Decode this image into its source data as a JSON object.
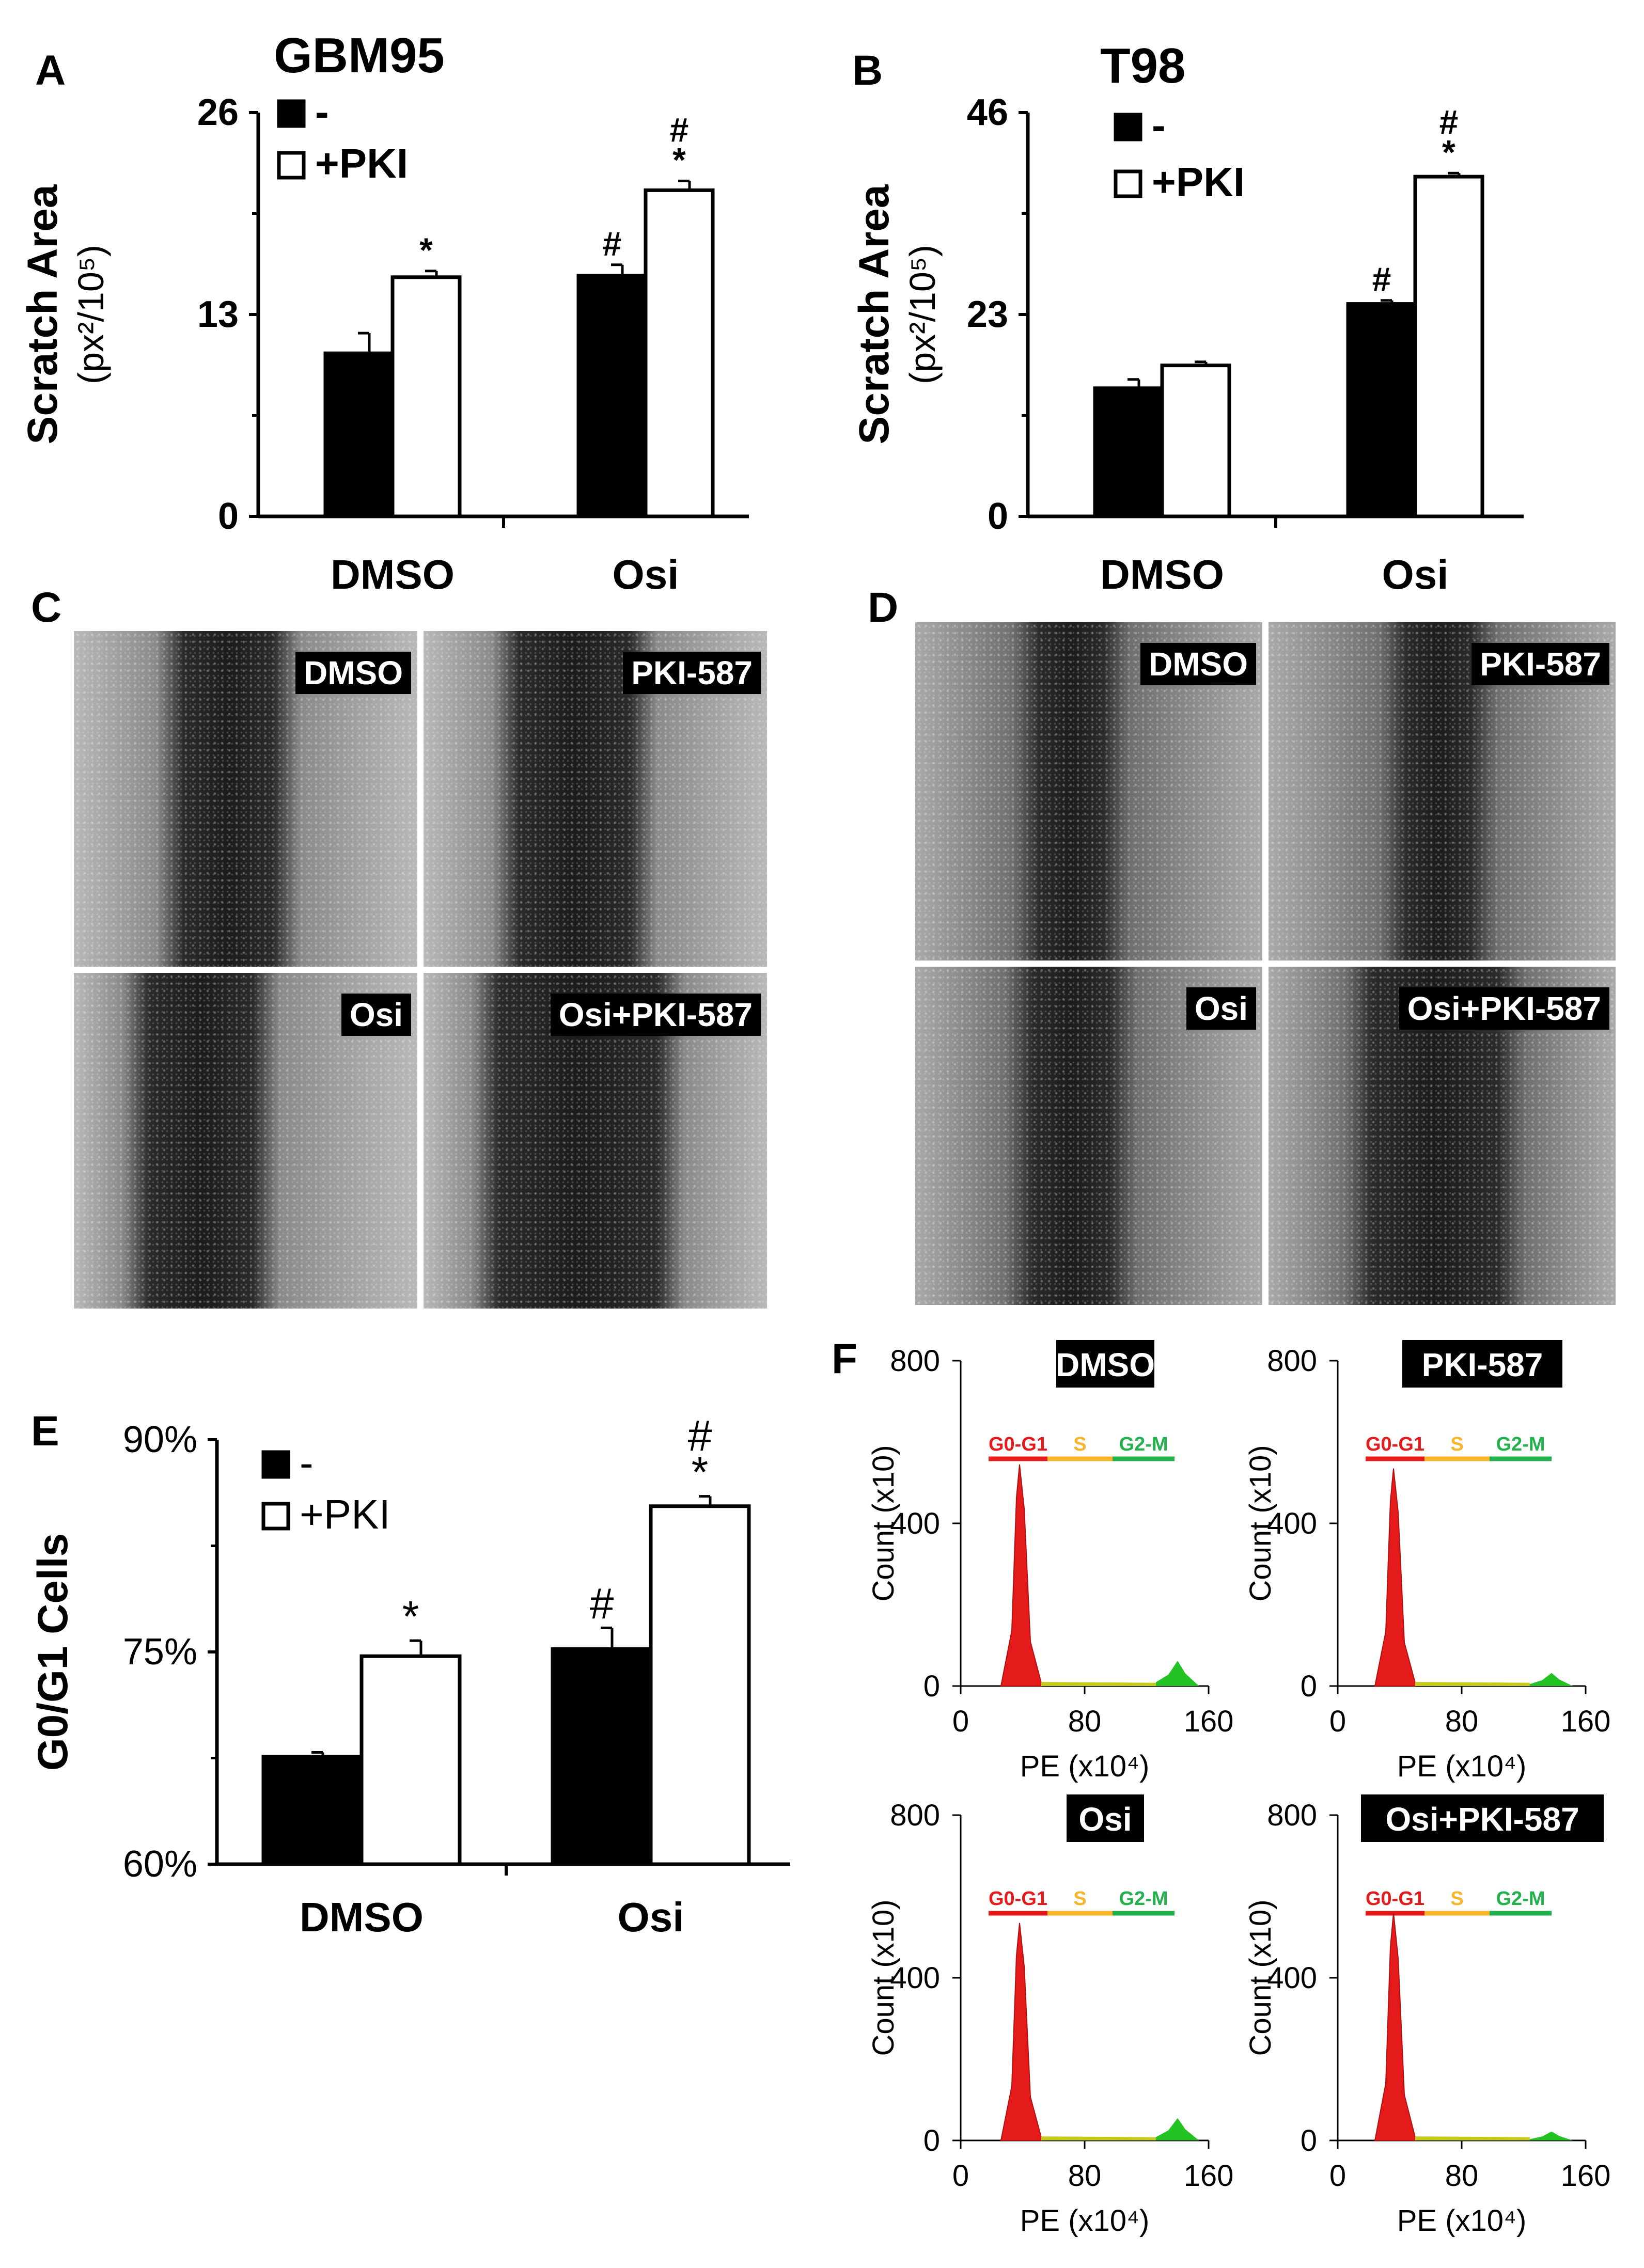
{
  "panel_labels": {
    "a": "A",
    "b": "B",
    "c": "C",
    "d": "D",
    "e": "E",
    "f": "F"
  },
  "colors": {
    "bar_dark": "#000000",
    "bar_light": "#ffffff",
    "hist_g0g1": "#e51b1b",
    "hist_s": "#c9c918",
    "hist_g2m": "#22c322",
    "phase_s": "#f7b52a",
    "phase_g2m": "#22b14c"
  },
  "chart_data": [
    {
      "id": "A",
      "type": "bar",
      "title": "GBM95",
      "ylabel": "Scratch Area",
      "ylabel_unit": "(px²/10⁵)",
      "ylim": [
        0,
        26
      ],
      "yticks": [
        0,
        13,
        26
      ],
      "ytick_labels": [
        "0",
        "13",
        "26"
      ],
      "categories": [
        "DMSO",
        "Osi"
      ],
      "series": [
        {
          "name": "-",
          "color": "#000000",
          "values": [
            10.5,
            15.5
          ],
          "errors": [
            1.3,
            0.7
          ],
          "marks": [
            "",
            "#"
          ]
        },
        {
          "name": "+PKI",
          "color": "#ffffff",
          "values": [
            15.4,
            21.0
          ],
          "errors": [
            0.4,
            0.6
          ],
          "marks": [
            "*",
            "#\n*"
          ]
        }
      ]
    },
    {
      "id": "B",
      "type": "bar",
      "title": "T98",
      "ylabel": "Scratch Area",
      "ylabel_unit": "(px²/10⁵)",
      "ylim": [
        0,
        46
      ],
      "yticks": [
        0,
        23,
        46
      ],
      "ytick_labels": [
        "0",
        "23",
        "46"
      ],
      "categories": [
        "DMSO",
        "Osi"
      ],
      "series": [
        {
          "name": "-",
          "color": "#000000",
          "values": [
            14.6,
            24.2
          ],
          "errors": [
            1.0,
            0.4
          ],
          "marks": [
            "",
            "#"
          ]
        },
        {
          "name": "+PKI",
          "color": "#ffffff",
          "values": [
            17.2,
            38.7
          ],
          "errors": [
            0.4,
            0.4
          ],
          "marks": [
            "",
            "#\n*"
          ]
        }
      ]
    },
    {
      "id": "E",
      "type": "bar",
      "title": "",
      "ylabel": "G0/G1 Cells",
      "ylabel_unit": "",
      "ylim": [
        60,
        90
      ],
      "yticks": [
        60,
        75,
        90
      ],
      "ytick_labels": [
        "60%",
        "75%",
        "90%"
      ],
      "categories": [
        "DMSO",
        "Osi"
      ],
      "series": [
        {
          "name": "-",
          "color": "#000000",
          "values": [
            67.6,
            75.2
          ],
          "errors": [
            0.3,
            1.5
          ],
          "marks": [
            "",
            "#"
          ]
        },
        {
          "name": "+PKI",
          "color": "#ffffff",
          "values": [
            74.7,
            85.3
          ],
          "errors": [
            1.1,
            0.7
          ],
          "marks": [
            "*",
            "#\n*"
          ]
        }
      ]
    },
    {
      "id": "F",
      "type": "histogram",
      "xlabel": "PE (x10⁴)",
      "ylabel": "Count (x10)",
      "xlim": [
        0,
        160
      ],
      "xticks": [
        0,
        80,
        160
      ],
      "ylim": [
        0,
        800
      ],
      "yticks": [
        0,
        400,
        800
      ],
      "phases": [
        "G0-G1",
        "S",
        "G2-M"
      ],
      "plots": [
        {
          "title": "DMSO",
          "g1_peak_x": 38,
          "g1_peak_count": 545,
          "g2_peak_x": 140,
          "g2_peak_count": 62
        },
        {
          "title": "PKI-587",
          "g1_peak_x": 36,
          "g1_peak_count": 535,
          "g2_peak_x": 138,
          "g2_peak_count": 32
        },
        {
          "title": "Osi",
          "g1_peak_x": 38,
          "g1_peak_count": 535,
          "g2_peak_x": 140,
          "g2_peak_count": 55
        },
        {
          "title": "Osi+PKI-587",
          "g1_peak_x": 36,
          "g1_peak_count": 560,
          "g2_peak_x": 138,
          "g2_peak_count": 22
        }
      ]
    }
  ],
  "micrographs": {
    "C": [
      {
        "label": "DMSO"
      },
      {
        "label": "PKI-587"
      },
      {
        "label": "Osi"
      },
      {
        "label": "Osi+PKI-587"
      }
    ],
    "D": [
      {
        "label": "DMSO"
      },
      {
        "label": "PKI-587"
      },
      {
        "label": "Osi"
      },
      {
        "label": "Osi+PKI-587"
      }
    ]
  }
}
